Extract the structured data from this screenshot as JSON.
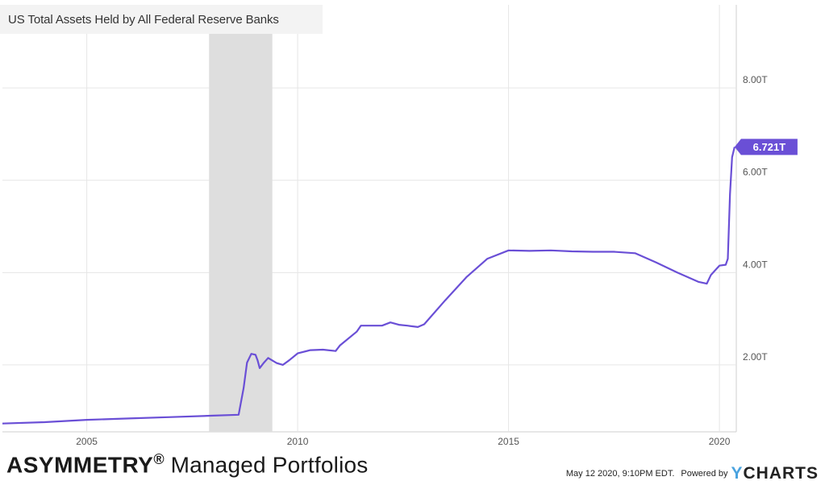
{
  "header": {
    "title": "US Total Assets Held by All Federal Reserve Banks"
  },
  "brand": {
    "name_bold": "ASYMMETRY",
    "registered": "®",
    "name_rest": " Managed Portfolios"
  },
  "footer": {
    "timestamp": "May 12 2020, 9:10PM EDT.",
    "powered_by": "Powered by",
    "logo_y": "Y",
    "logo_rest": "CHARTS"
  },
  "colors": {
    "line": "#6a4fd6",
    "recession": "#dedede",
    "grid": "#e6e6e6",
    "callout": "#6a4fd6"
  },
  "chart_data": {
    "type": "line",
    "title": "US Total Assets Held by All Federal Reserve Banks",
    "xlabel": "",
    "ylabel": "",
    "xlim": [
      2003.0,
      2020.4
    ],
    "ylim": [
      0.55,
      9.8
    ],
    "x_ticks": [
      {
        "value": 2005,
        "label": "2005"
      },
      {
        "value": 2010,
        "label": "2010"
      },
      {
        "value": 2015,
        "label": "2015"
      },
      {
        "value": 2020,
        "label": "2020"
      }
    ],
    "y_ticks": [
      {
        "value": 2,
        "label": "2.00T"
      },
      {
        "value": 4,
        "label": "4.00T"
      },
      {
        "value": 6,
        "label": "6.00T"
      },
      {
        "value": 8,
        "label": "8.00T"
      }
    ],
    "grid": true,
    "recession_band": [
      2007.9,
      2009.4
    ],
    "last_value": {
      "x": 2020.36,
      "y": 6.721,
      "label": "6.721T"
    },
    "series": [
      {
        "values": [
          [
            2003.0,
            0.73
          ],
          [
            2004.0,
            0.76
          ],
          [
            2005.0,
            0.81
          ],
          [
            2006.0,
            0.84
          ],
          [
            2007.0,
            0.87
          ],
          [
            2008.0,
            0.9
          ],
          [
            2008.6,
            0.92
          ],
          [
            2008.72,
            1.5
          ],
          [
            2008.8,
            2.05
          ],
          [
            2008.9,
            2.24
          ],
          [
            2009.0,
            2.22
          ],
          [
            2009.05,
            2.1
          ],
          [
            2009.1,
            1.93
          ],
          [
            2009.2,
            2.05
          ],
          [
            2009.3,
            2.15
          ],
          [
            2009.5,
            2.04
          ],
          [
            2009.65,
            2.0
          ],
          [
            2009.8,
            2.1
          ],
          [
            2010.0,
            2.25
          ],
          [
            2010.3,
            2.32
          ],
          [
            2010.6,
            2.33
          ],
          [
            2010.9,
            2.3
          ],
          [
            2011.0,
            2.42
          ],
          [
            2011.4,
            2.72
          ],
          [
            2011.5,
            2.85
          ],
          [
            2011.8,
            2.85
          ],
          [
            2012.0,
            2.85
          ],
          [
            2012.2,
            2.92
          ],
          [
            2012.4,
            2.87
          ],
          [
            2012.6,
            2.85
          ],
          [
            2012.85,
            2.82
          ],
          [
            2013.0,
            2.88
          ],
          [
            2013.5,
            3.4
          ],
          [
            2014.0,
            3.9
          ],
          [
            2014.5,
            4.3
          ],
          [
            2015.0,
            4.48
          ],
          [
            2015.5,
            4.47
          ],
          [
            2016.0,
            4.48
          ],
          [
            2016.5,
            4.46
          ],
          [
            2017.0,
            4.45
          ],
          [
            2017.5,
            4.45
          ],
          [
            2018.0,
            4.42
          ],
          [
            2018.5,
            4.22
          ],
          [
            2019.0,
            4.0
          ],
          [
            2019.5,
            3.8
          ],
          [
            2019.7,
            3.76
          ],
          [
            2019.8,
            3.95
          ],
          [
            2020.0,
            4.15
          ],
          [
            2020.15,
            4.17
          ],
          [
            2020.2,
            4.3
          ],
          [
            2020.25,
            5.7
          ],
          [
            2020.3,
            6.5
          ],
          [
            2020.36,
            6.721
          ]
        ]
      }
    ]
  }
}
